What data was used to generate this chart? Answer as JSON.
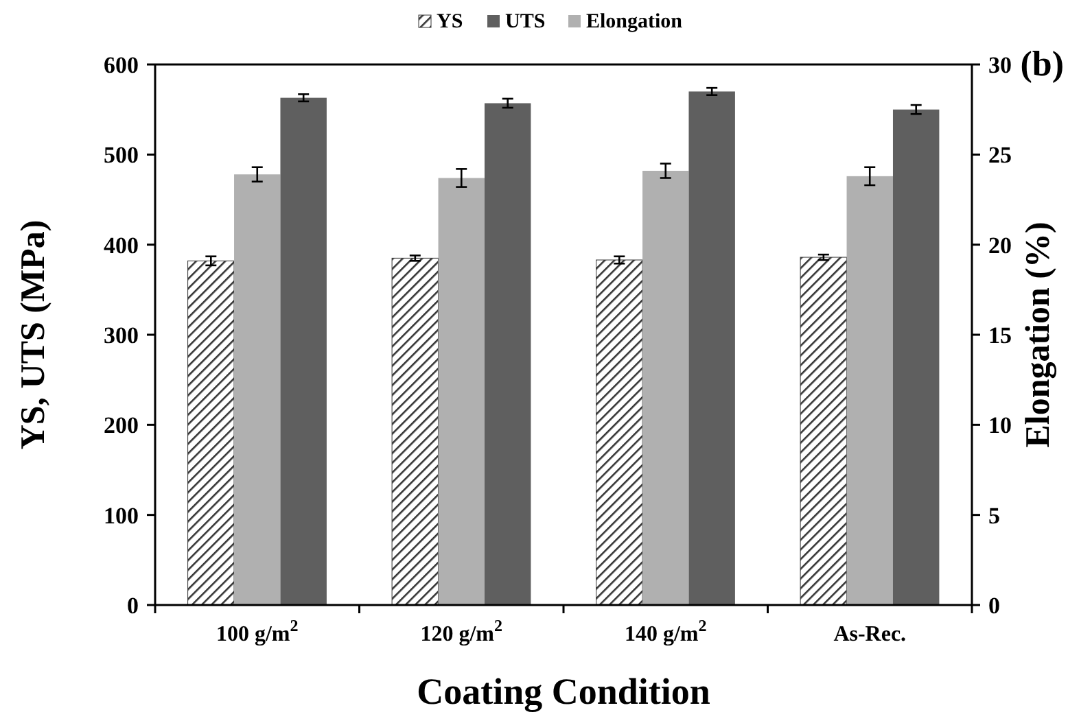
{
  "chart_data": {
    "type": "bar",
    "xlabel": "Coating Condition",
    "ylabel": "YS, UTS (MPa)",
    "y2label": "Elongation (%)",
    "annotations": [
      "(b)"
    ],
    "categories": [
      "100 g/m$^{2}$",
      "120 g/m$^{2}$",
      "140 g/m$^{2}$",
      "As-Rec."
    ],
    "series": [
      {
        "name": "YS",
        "color": "#333333",
        "values": [
          382,
          385,
          383,
          386
        ],
        "errors": [
          5,
          3,
          4,
          3
        ]
      },
      {
        "name": "Elongation",
        "color": "#b0b0b0",
        "values": [
          23.9,
          23.7,
          24.1,
          23.8
        ],
        "errors": [
          0.4,
          0.5,
          0.4,
          0.5
        ],
        "axis": "y2"
      },
      {
        "name": "UTS",
        "color": "#5f5f5f",
        "values": [
          563,
          557,
          570,
          550
        ],
        "errors": [
          4,
          5,
          4,
          5
        ]
      }
    ],
    "ylim": [
      0,
      600
    ],
    "yticks": [
      0,
      100,
      200,
      300,
      400,
      500,
      600
    ],
    "y2lim": [
      0,
      30
    ],
    "y2ticks": [
      0,
      5,
      10,
      15,
      20,
      25,
      30
    ],
    "grid": false,
    "legend": "top"
  }
}
